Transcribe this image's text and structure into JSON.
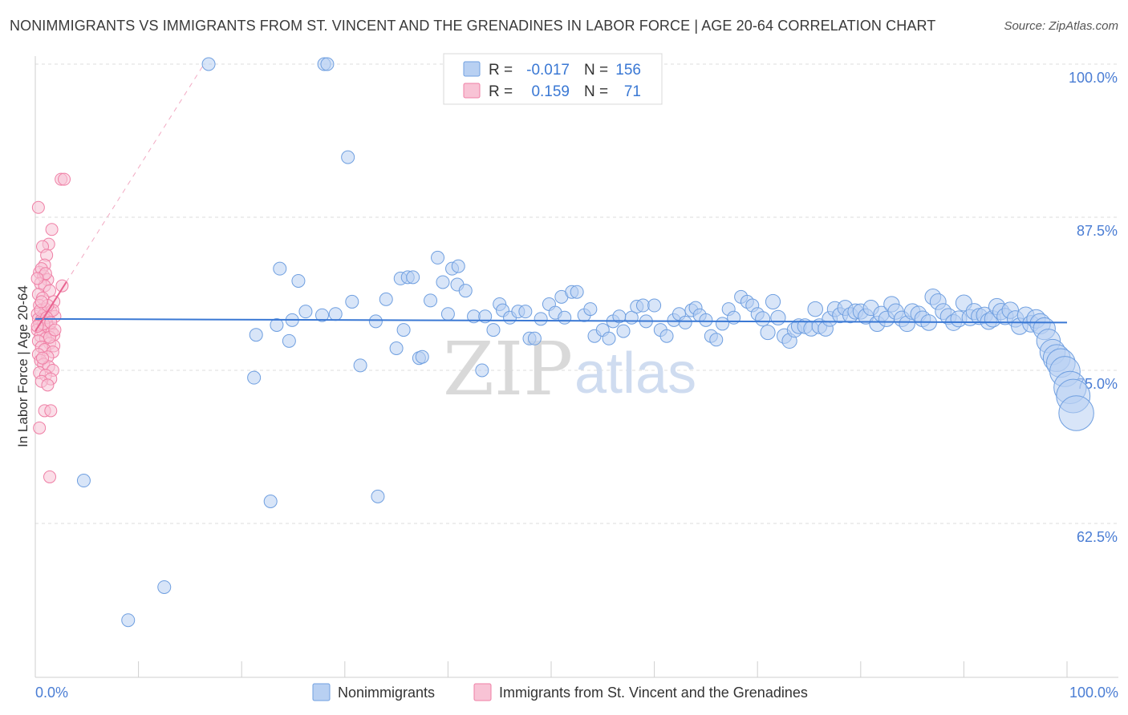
{
  "title": "NONIMMIGRANTS VS IMMIGRANTS FROM ST. VINCENT AND THE GRENADINES IN LABOR FORCE | AGE 20-64 CORRELATION CHART",
  "source": "Source: ZipAtlas.com",
  "watermark": {
    "zip": "ZIP",
    "atlas": "atlas"
  },
  "legend_top": {
    "row1": {
      "r_label": "R =",
      "r_value": "-0.017",
      "n_label": "N =",
      "n_value": "156"
    },
    "row2": {
      "r_label": "R =",
      "r_value": "0.159",
      "n_label": "N =",
      "n_value": "71"
    }
  },
  "colors": {
    "blue": "#6f9fe0",
    "blue_fill": "#b8d0f2",
    "blue_line": "#3a78d4",
    "pink": "#ef7fa5",
    "pink_fill": "#f8c3d5",
    "pink_line": "#e8628f",
    "grid": "#dcdcdc",
    "tick_text": "#4a7dd4"
  },
  "chart_data": {
    "type": "scatter",
    "title": "NONIMMIGRANTS VS IMMIGRANTS FROM ST. VINCENT AND THE GRENADINES IN LABOR FORCE | AGE 20-64 CORRELATION CHART",
    "xlabel": "",
    "ylabel": "In Labor Force | Age 20-64",
    "xlim": [
      0,
      100
    ],
    "ylim": [
      52,
      101
    ],
    "x_tick_labels": [
      "0.0%",
      "100.0%"
    ],
    "y_ticks": [
      62.5,
      75.0,
      87.5,
      100.0
    ],
    "y_tick_labels": [
      "62.5%",
      "75.0%",
      "87.5%",
      "100.0%"
    ],
    "grid": true,
    "legend_position": "bottom",
    "series": [
      {
        "name": "Nonimmigrants",
        "color": "#6f9fe0",
        "r": -0.017,
        "n": 156,
        "trend": {
          "x": [
            0,
            100
          ],
          "y": [
            79.2,
            78.9
          ]
        },
        "points": [
          [
            16.8,
            100
          ],
          [
            28,
            100
          ],
          [
            28.3,
            100
          ],
          [
            30.3,
            92.4
          ],
          [
            23.7,
            83.3
          ],
          [
            25.5,
            82.3
          ],
          [
            26.2,
            79.8
          ],
          [
            24.9,
            79.1
          ],
          [
            23.4,
            78.7
          ],
          [
            24.6,
            77.4
          ],
          [
            21.4,
            77.9
          ],
          [
            21.2,
            74.4
          ],
          [
            30.7,
            80.6
          ],
          [
            27.8,
            79.5
          ],
          [
            29.1,
            79.6
          ],
          [
            31.5,
            75.4
          ],
          [
            33,
            79
          ],
          [
            34,
            80.8
          ],
          [
            35,
            76.8
          ],
          [
            35.4,
            82.5
          ],
          [
            36.1,
            82.6
          ],
          [
            36.6,
            82.6
          ],
          [
            35.7,
            78.3
          ],
          [
            37.2,
            76
          ],
          [
            37.5,
            76.1
          ],
          [
            38.3,
            80.7
          ],
          [
            39,
            84.2
          ],
          [
            39.5,
            82.2
          ],
          [
            40.4,
            83.3
          ],
          [
            40,
            79.6
          ],
          [
            41,
            83.5
          ],
          [
            40.9,
            82
          ],
          [
            41.7,
            81.5
          ],
          [
            42.5,
            79.4
          ],
          [
            43.3,
            75
          ],
          [
            43.6,
            79.4
          ],
          [
            44.4,
            78.3
          ],
          [
            45,
            80.4
          ],
          [
            45.3,
            79.9
          ],
          [
            46,
            79.3
          ],
          [
            46.8,
            79.8
          ],
          [
            47.5,
            79.8
          ],
          [
            47.9,
            77.6
          ],
          [
            48.4,
            77.6
          ],
          [
            49,
            79.2
          ],
          [
            49.8,
            80.4
          ],
          [
            50.4,
            79.7
          ],
          [
            51,
            81
          ],
          [
            51.3,
            79.3
          ],
          [
            52,
            81.4
          ],
          [
            52.5,
            81.4
          ],
          [
            53.2,
            79.5
          ],
          [
            53.8,
            80
          ],
          [
            54.2,
            77.8
          ],
          [
            55,
            78.3
          ],
          [
            55.6,
            77.6
          ],
          [
            56,
            79
          ],
          [
            56.6,
            79.4
          ],
          [
            57,
            78.2
          ],
          [
            57.8,
            79.3
          ],
          [
            58.3,
            80.2
          ],
          [
            58.9,
            80.3
          ],
          [
            59.2,
            79
          ],
          [
            60,
            80.3
          ],
          [
            60.6,
            78.3
          ],
          [
            61.2,
            77.8
          ],
          [
            61.9,
            79.1
          ],
          [
            62.4,
            79.6
          ],
          [
            63,
            78.9
          ],
          [
            63.6,
            79.9
          ],
          [
            64,
            80.1
          ],
          [
            64.4,
            79.5
          ],
          [
            65,
            79.1
          ],
          [
            65.5,
            77.8
          ],
          [
            66,
            77.5
          ],
          [
            66.6,
            78.8
          ],
          [
            67.2,
            80
          ],
          [
            67.7,
            79.3
          ],
          [
            68.4,
            81
          ],
          [
            69,
            80.6
          ],
          [
            69.5,
            80.3
          ],
          [
            70,
            79.6
          ],
          [
            70.5,
            79.2
          ],
          [
            71,
            78.1
          ],
          [
            71.5,
            80.6
          ],
          [
            72,
            79.3
          ],
          [
            72.6,
            77.8
          ],
          [
            73.1,
            77.4
          ],
          [
            73.6,
            78.3
          ],
          [
            74,
            78.6
          ],
          [
            74.6,
            78.6
          ],
          [
            75.2,
            78.4
          ],
          [
            75.6,
            80
          ],
          [
            76,
            78.6
          ],
          [
            76.6,
            78.4
          ],
          [
            77,
            79.2
          ],
          [
            77.5,
            80
          ],
          [
            78,
            79.5
          ],
          [
            78.5,
            80.1
          ],
          [
            79,
            79.5
          ],
          [
            79.5,
            79.8
          ],
          [
            80,
            79.8
          ],
          [
            80.5,
            79.4
          ],
          [
            81,
            80.1
          ],
          [
            81.6,
            78.8
          ],
          [
            82,
            79.6
          ],
          [
            82.5,
            79.2
          ],
          [
            83,
            80.4
          ],
          [
            83.4,
            79.8
          ],
          [
            84,
            79.2
          ],
          [
            84.5,
            78.8
          ],
          [
            85,
            79.8
          ],
          [
            85.6,
            79.6
          ],
          [
            86,
            79.2
          ],
          [
            86.6,
            78.9
          ],
          [
            87,
            81
          ],
          [
            87.5,
            80.6
          ],
          [
            88,
            79.8
          ],
          [
            88.5,
            79.4
          ],
          [
            89,
            78.9
          ],
          [
            89.5,
            79.2
          ],
          [
            90,
            80.5
          ],
          [
            90.6,
            79.3
          ],
          [
            91,
            79.8
          ],
          [
            91.5,
            79.4
          ],
          [
            92,
            79.5
          ],
          [
            92.4,
            79
          ],
          [
            92.8,
            79.2
          ],
          [
            93.2,
            80.2
          ],
          [
            93.6,
            79.8
          ],
          [
            94,
            79.4
          ],
          [
            94.5,
            79.9
          ],
          [
            95,
            79.2
          ],
          [
            95.4,
            78.6
          ],
          [
            96,
            79.5
          ],
          [
            96.5,
            78.8
          ],
          [
            97,
            79.2
          ],
          [
            97.4,
            78.8
          ],
          [
            97.8,
            78.4
          ],
          [
            98.2,
            77.4
          ],
          [
            98.6,
            76.5
          ],
          [
            99,
            76
          ],
          [
            99.4,
            75.6
          ],
          [
            99.8,
            74.9
          ],
          [
            100.3,
            73.6
          ],
          [
            100.6,
            72.9
          ],
          [
            100.9,
            71.5
          ],
          [
            4.7,
            66
          ],
          [
            22.8,
            64.3
          ],
          [
            33.2,
            64.7
          ],
          [
            12.5,
            57.3
          ],
          [
            9,
            54.6
          ]
        ]
      },
      {
        "name": "Immigrants from St. Vincent and the Grenadines",
        "color": "#ef7fa5",
        "r": 0.159,
        "n": 71,
        "trend": {
          "x": [
            0,
            3
          ],
          "y": [
            78.2,
            82.2
          ]
        },
        "points": [
          [
            0.3,
            88.3
          ],
          [
            2.5,
            90.6
          ],
          [
            2.8,
            90.6
          ],
          [
            1.6,
            86.5
          ],
          [
            1.3,
            85.3
          ],
          [
            0.7,
            85.1
          ],
          [
            1.1,
            84.4
          ],
          [
            0.9,
            83.6
          ],
          [
            0.4,
            83
          ],
          [
            0.8,
            82.7
          ],
          [
            1.2,
            82.4
          ],
          [
            0.5,
            82.1
          ],
          [
            0.9,
            81.9
          ],
          [
            2.6,
            81.9
          ],
          [
            1.4,
            81.5
          ],
          [
            0.3,
            81.2
          ],
          [
            0.7,
            80.9
          ],
          [
            1.8,
            80.6
          ],
          [
            0.4,
            80.3
          ],
          [
            1,
            80
          ],
          [
            1.5,
            79.8
          ],
          [
            0.2,
            79.6
          ],
          [
            0.8,
            79.5
          ],
          [
            1.9,
            79.4
          ],
          [
            0.3,
            79.2
          ],
          [
            0.6,
            79.1
          ],
          [
            1.1,
            78.9
          ],
          [
            0.4,
            78.8
          ],
          [
            0.9,
            78.6
          ],
          [
            1.3,
            78.5
          ],
          [
            0.2,
            78.3
          ],
          [
            0.7,
            78.2
          ],
          [
            1.6,
            78.1
          ],
          [
            1.8,
            77.9
          ],
          [
            0.5,
            77.8
          ],
          [
            1,
            77.6
          ],
          [
            0.3,
            77.4
          ],
          [
            1.4,
            77.2
          ],
          [
            1.8,
            77
          ],
          [
            0.6,
            76.9
          ],
          [
            0.9,
            76.7
          ],
          [
            1.7,
            76.5
          ],
          [
            0.3,
            76.3
          ],
          [
            1.2,
            76.1
          ],
          [
            0.5,
            75.8
          ],
          [
            0.8,
            75.5
          ],
          [
            1.3,
            75.3
          ],
          [
            1.7,
            75
          ],
          [
            0.4,
            74.8
          ],
          [
            1,
            74.6
          ],
          [
            1.5,
            74.3
          ],
          [
            0.6,
            74.1
          ],
          [
            1.2,
            73.8
          ],
          [
            0.9,
            71.7
          ],
          [
            1.5,
            71.7
          ],
          [
            0.4,
            70.3
          ],
          [
            1.4,
            66.3
          ],
          [
            0.6,
            83.3
          ],
          [
            1,
            82.9
          ],
          [
            0.2,
            82.5
          ],
          [
            1.7,
            79.9
          ],
          [
            0.5,
            79.9
          ],
          [
            1.1,
            79.3
          ],
          [
            0.8,
            78.8
          ],
          [
            1.5,
            78.9
          ],
          [
            0.2,
            78.6
          ],
          [
            1.2,
            80.3
          ],
          [
            0.6,
            80.6
          ],
          [
            1.4,
            77.7
          ],
          [
            0.7,
            76
          ],
          [
            1.9,
            78.3
          ]
        ]
      }
    ]
  },
  "bottom_legend": {
    "item1": "Nonimmigrants",
    "item2": "Immigrants from St. Vincent and the Grenadines"
  }
}
